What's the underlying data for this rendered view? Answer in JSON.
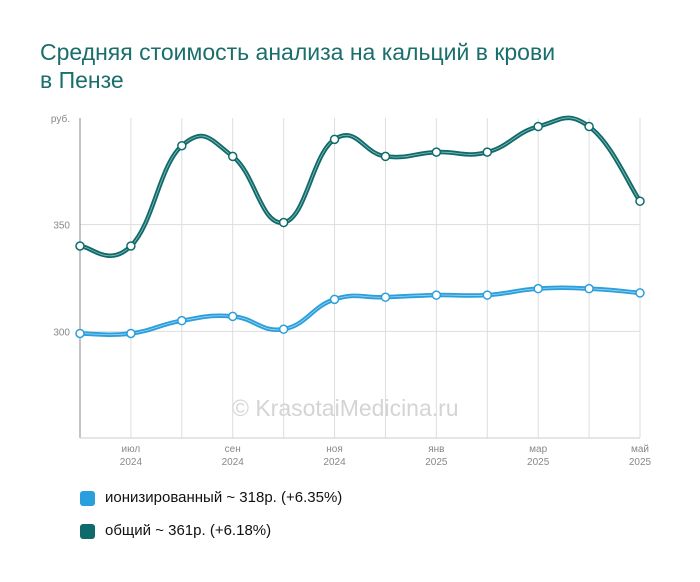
{
  "title": "Средняя стоимость анализа на кальций в крови в Пензе",
  "watermark": "© KrasotaiMedicina.ru",
  "chart_data": {
    "type": "line",
    "title": "Средняя стоимость анализа на кальций в крови в Пензе",
    "ylabel": "руб.",
    "xlabel": "",
    "ylim": [
      250,
      400
    ],
    "yticks": [
      300,
      350
    ],
    "grid": true,
    "legend_position": "bottom-left",
    "x": [
      "2024-06",
      "2024-07",
      "2024-08",
      "2024-09",
      "2024-10",
      "2024-11",
      "2024-12",
      "2025-01",
      "2025-02",
      "2025-03",
      "2025-04",
      "2025-05"
    ],
    "x_tick_labels": [
      {
        "month": "июл",
        "year": "2024"
      },
      {
        "month": "сен",
        "year": "2024"
      },
      {
        "month": "ноя",
        "year": "2024"
      },
      {
        "month": "янв",
        "year": "2025"
      },
      {
        "month": "мар",
        "year": "2025"
      },
      {
        "month": "май",
        "year": "2025"
      }
    ],
    "series": [
      {
        "name": "ионизированный",
        "color": "#2a9fdb",
        "values": [
          299,
          299,
          305,
          307,
          301,
          315,
          316,
          317,
          317,
          320,
          320,
          318
        ]
      },
      {
        "name": "общий",
        "color": "#0f6b6b",
        "values": [
          340,
          340,
          387,
          382,
          351,
          390,
          382,
          384,
          384,
          396,
          396,
          361
        ]
      }
    ]
  },
  "legend": [
    {
      "label": "ионизированный ~ 318р. (+6.35%)",
      "color": "#2a9fdb"
    },
    {
      "label": "общий ~ 361р. (+6.18%)",
      "color": "#0f6b6b"
    }
  ]
}
